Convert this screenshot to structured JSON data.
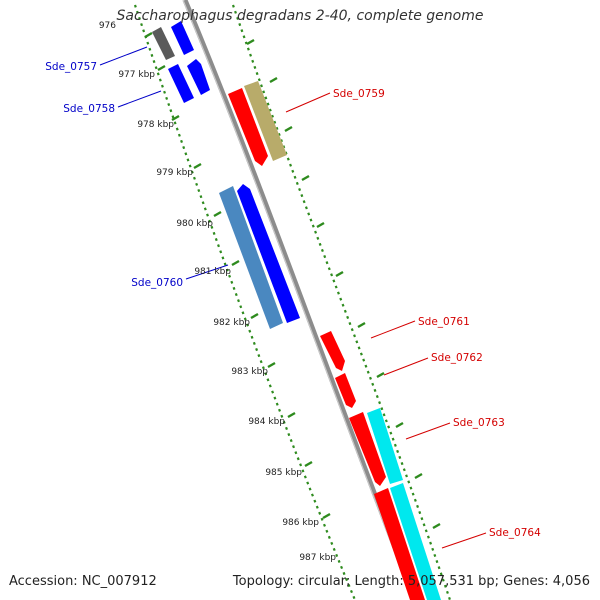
{
  "title": "Saccharophagus degradans 2-40, complete genome",
  "footer": {
    "accession": "Accession: NC_007912",
    "topology": "Topology: circular; Length: 5,057,531 bp; Genes: 4,056"
  },
  "colors": {
    "backbone": "#8c8c8c",
    "forward_label": "#0000c8",
    "reverse_label": "#d40000",
    "tick": "#2e8b1e",
    "cds_blue": "#0000ff",
    "cds_red": "#ff0000",
    "cds_cyan": "#00ffff"
  },
  "scale_ticks": [
    "976",
    "977 kbp",
    "978 kbp",
    "979 kbp",
    "980 kbp",
    "981 kbp",
    "982 kbp",
    "983 kbp",
    "984 kbp",
    "985 kbp",
    "986 kbp",
    "987 kbp"
  ],
  "genes": [
    {
      "label": "Sde_0757",
      "strand": "forward"
    },
    {
      "label": "Sde_0758",
      "strand": "forward"
    },
    {
      "label": "Sde_0760",
      "strand": "forward"
    },
    {
      "label": "Sde_0759",
      "strand": "reverse"
    },
    {
      "label": "Sde_0761",
      "strand": "reverse"
    },
    {
      "label": "Sde_0762",
      "strand": "reverse"
    },
    {
      "label": "Sde_0763",
      "strand": "reverse"
    },
    {
      "label": "Sde_0764",
      "strand": "reverse"
    }
  ]
}
